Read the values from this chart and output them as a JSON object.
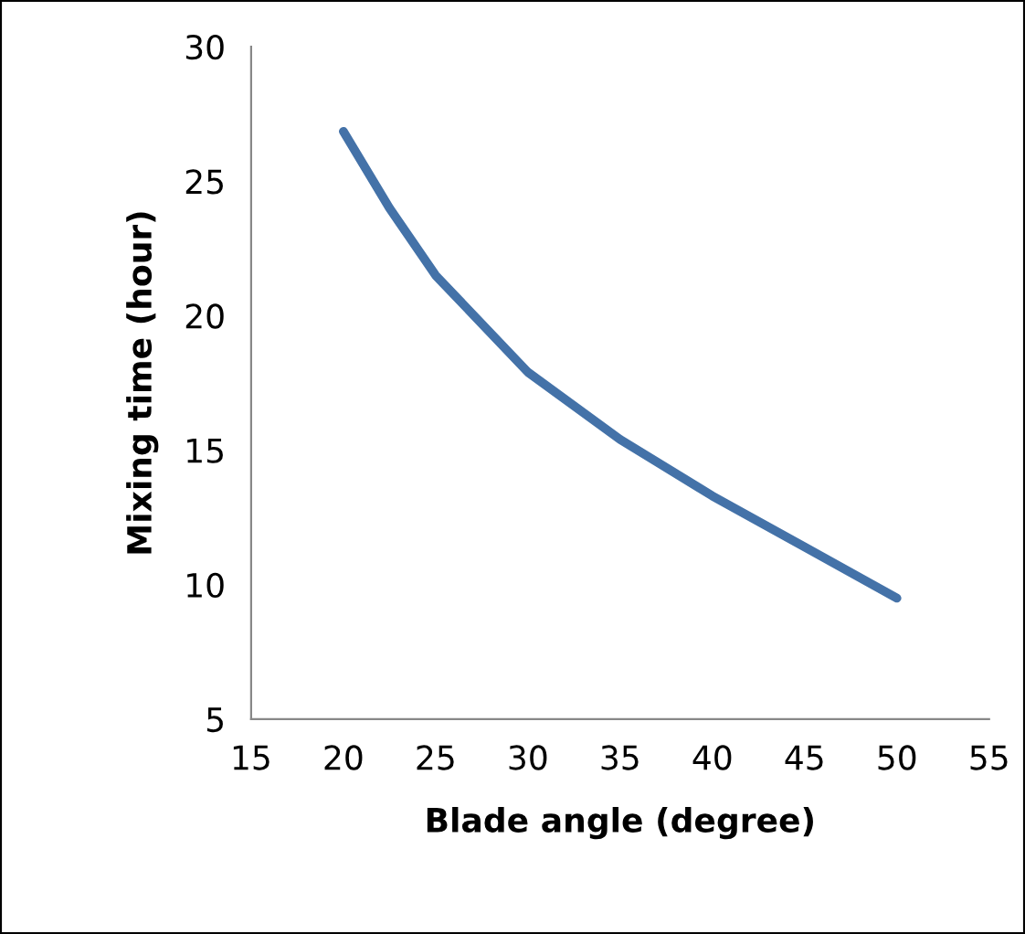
{
  "chart_data": {
    "type": "line",
    "xlabel": "Blade angle (degree)",
    "ylabel": "Mixing time (hour)",
    "x": [
      20,
      22.5,
      25,
      30,
      35,
      40,
      45,
      50
    ],
    "series": [
      {
        "color": "#4472a8",
        "values": [
          26.85,
          24.0,
          21.5,
          17.9,
          15.4,
          13.3,
          11.4,
          9.5
        ]
      }
    ],
    "xlim": [
      15,
      55
    ],
    "xticks": [
      15,
      20,
      25,
      30,
      35,
      40,
      45,
      50,
      55
    ],
    "ylim": [
      5,
      30
    ],
    "yticks": [
      5,
      10,
      15,
      20,
      25,
      30
    ],
    "grid": false,
    "legend": false,
    "marker": "none",
    "line_style": "solid"
  }
}
